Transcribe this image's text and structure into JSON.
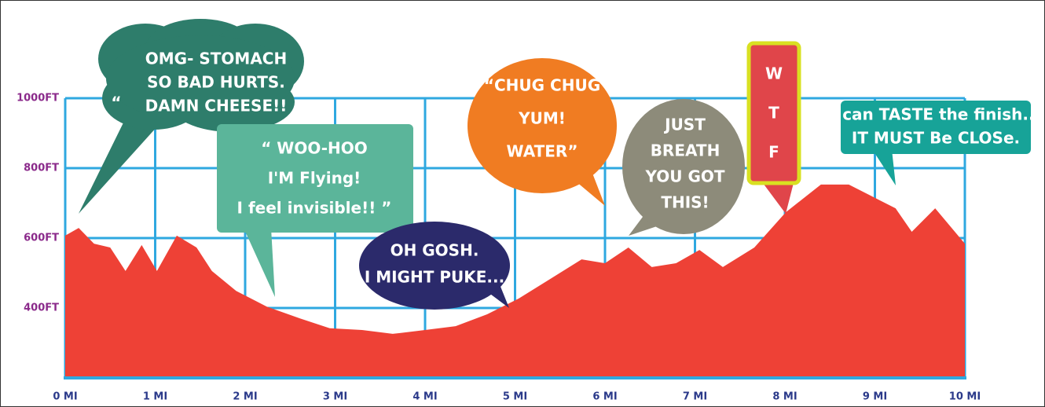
{
  "chart_data": {
    "type": "area",
    "x": [
      0,
      0.15,
      0.32,
      0.5,
      0.67,
      0.85,
      1.02,
      1.24,
      1.46,
      1.63,
      1.9,
      2.24,
      2.6,
      2.94,
      3.3,
      3.64,
      4.0,
      4.34,
      4.69,
      5.04,
      5.39,
      5.74,
      6.0,
      6.26,
      6.52,
      6.79,
      7.05,
      7.31,
      7.66,
      8.01,
      8.4,
      8.71,
      8.97,
      9.23,
      9.41,
      9.67,
      10
    ],
    "values": [
      607,
      629,
      584,
      573,
      506,
      580,
      506,
      607,
      573,
      506,
      449,
      404,
      371,
      342,
      337,
      326,
      337,
      348,
      382,
      427,
      483,
      539,
      528,
      573,
      517,
      528,
      566,
      517,
      573,
      674,
      753,
      753,
      719,
      685,
      618,
      685,
      584
    ],
    "color": "#ee4136",
    "xlim": [
      0,
      10
    ],
    "xticks": [
      {
        "value": 0,
        "label": "0 MI"
      },
      {
        "value": 1,
        "label": "1 MI"
      },
      {
        "value": 2,
        "label": "2 MI"
      },
      {
        "value": 3,
        "label": "3 MI"
      },
      {
        "value": 4,
        "label": "4 MI"
      },
      {
        "value": 5,
        "label": "5 MI"
      },
      {
        "value": 6,
        "label": "6 MI"
      },
      {
        "value": 7,
        "label": "7 MI"
      },
      {
        "value": 8,
        "label": "8 MI"
      },
      {
        "value": 9,
        "label": "9 MI"
      },
      {
        "value": 10,
        "label": "10 MI"
      }
    ],
    "ylim": [
      200,
      1000
    ],
    "yticks": [
      {
        "value": 400,
        "label": "400FT"
      },
      {
        "value": 600,
        "label": "600FT"
      },
      {
        "value": 800,
        "label": "800FT"
      },
      {
        "value": 1000,
        "label": "1000FT"
      }
    ],
    "grid": true,
    "grid_color": "#2fa8e0",
    "annotations": [
      {
        "lines": [
          "“",
          "OMG- STOMACH",
          "SO BAD HURTS.",
          "DAMN CHEESE!!"
        ],
        "color": "#2e7d6b"
      },
      {
        "lines": [
          "“ WOO-HOO",
          "I'M Flying!",
          "I feel invisible!! ”"
        ],
        "color": "#5bb59a"
      },
      {
        "lines": [
          "OH GOSH.",
          "I MIGHT PUKE..."
        ],
        "color": "#2b2a6b"
      },
      {
        "lines": [
          "“CHUG CHUG",
          "YUM!",
          "WATER”"
        ],
        "color": "#f07c22"
      },
      {
        "lines": [
          "JUST",
          "BREATH",
          "YOU GOT",
          "THIS!"
        ],
        "color": "#8d8b7a"
      },
      {
        "lines": [
          "W",
          "T",
          "F"
        ],
        "color": "#e0454a"
      },
      {
        "lines": [
          "I can TASTE the finish...",
          "IT MUST Be CLOSe."
        ],
        "color": "#17a398"
      }
    ]
  }
}
